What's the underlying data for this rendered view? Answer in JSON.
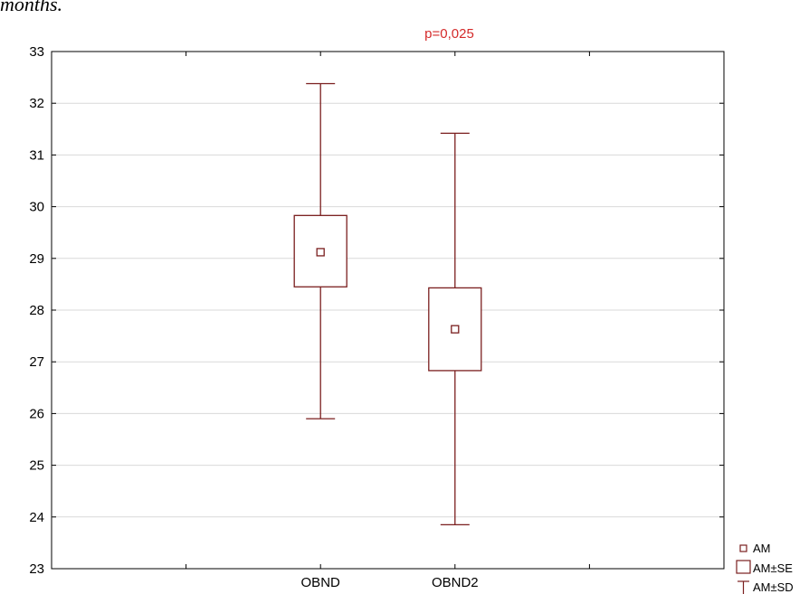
{
  "caption": "months.",
  "chart_data": {
    "type": "box",
    "annotation": "p=0,025",
    "categories": [
      "OBND",
      "OBND2"
    ],
    "series": [
      {
        "category": "OBND",
        "mean": 29.12,
        "se_low": 28.45,
        "se_high": 29.83,
        "sd_low": 25.9,
        "sd_high": 32.38
      },
      {
        "category": "OBND2",
        "mean": 27.63,
        "se_low": 26.83,
        "se_high": 28.43,
        "sd_low": 23.85,
        "sd_high": 31.42
      }
    ],
    "ylim": [
      23,
      33
    ],
    "yticks": [
      "23",
      "24",
      "25",
      "26",
      "27",
      "28",
      "29",
      "30",
      "31",
      "32",
      "33"
    ],
    "grid": true,
    "legend": [
      "AM",
      "AM±SE",
      "AM±SD"
    ],
    "legend_position": "bottom-right",
    "colors": {
      "series": "#7a1e1e",
      "annotation": "#d42a2a",
      "grid": "#d9d9d9",
      "axis": "#000000"
    }
  }
}
